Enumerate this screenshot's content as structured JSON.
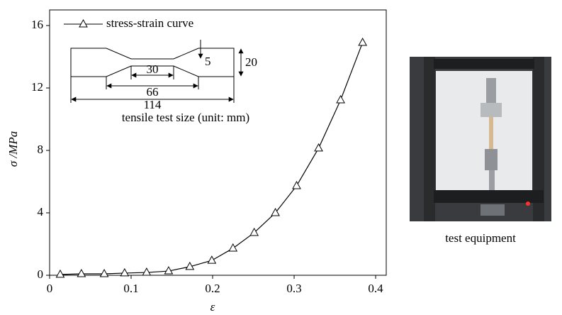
{
  "chart_data": {
    "type": "line",
    "x_label": "ε",
    "y_label": "σ /MPa",
    "x": [
      0.013,
      0.039,
      0.067,
      0.092,
      0.119,
      0.146,
      0.172,
      0.199,
      0.225,
      0.251,
      0.277,
      0.303,
      0.33,
      0.357,
      0.384
    ],
    "series": [
      {
        "name": "stress-strain curve",
        "color": "#000000",
        "values": [
          0.05,
          0.09,
          0.09,
          0.14,
          0.18,
          0.27,
          0.55,
          0.95,
          1.73,
          2.73,
          4.0,
          5.73,
          8.14,
          11.23,
          14.91
        ]
      }
    ],
    "xlim": [
      0,
      0.413
    ],
    "ylim": [
      0,
      17
    ],
    "xticks": [
      0,
      0.1,
      0.2,
      0.3,
      0.4
    ],
    "yticks": [
      0,
      4,
      8,
      12,
      16
    ],
    "legend": "upper left",
    "inset": {
      "dimensions": [
        5,
        20,
        30,
        66,
        114
      ],
      "caption": "tensile test size (unit: mm)"
    },
    "photo_caption": "test equipment"
  }
}
